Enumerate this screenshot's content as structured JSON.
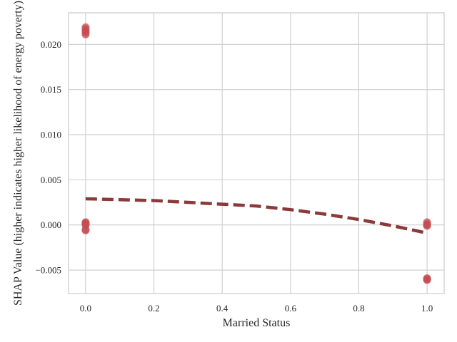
{
  "chart_data": {
    "type": "scatter",
    "title": "",
    "xlabel": "Married Status",
    "ylabel": "SHAP Value (higher indicates higher likelihood of energy poverty)",
    "xlim": [
      -0.05,
      1.05
    ],
    "ylim": [
      -0.0076,
      0.0235
    ],
    "x_ticks": [
      0.0,
      0.2,
      0.4,
      0.6,
      0.8,
      1.0
    ],
    "x_tick_labels": [
      "0.0",
      "0.2",
      "0.4",
      "0.6",
      "0.8",
      "1.0"
    ],
    "y_ticks": [
      -0.005,
      0.0,
      0.005,
      0.01,
      0.015,
      0.02
    ],
    "y_tick_labels": [
      "−0.005",
      "0.000",
      "0.005",
      "0.010",
      "0.015",
      "0.020"
    ],
    "grid": true,
    "point_color": "#c44e52",
    "trend_color": "#8b3a3a",
    "points": [
      {
        "x": 0.0,
        "y": 0.0219
      },
      {
        "x": 0.0,
        "y": 0.0217
      },
      {
        "x": 0.0,
        "y": 0.0215
      },
      {
        "x": 0.0,
        "y": 0.0213
      },
      {
        "x": 0.0,
        "y": 0.0211
      },
      {
        "x": 0.0,
        "y": 0.0003
      },
      {
        "x": 0.0,
        "y": 0.0002
      },
      {
        "x": 0.0,
        "y": 0.0001
      },
      {
        "x": 0.0,
        "y": 0.0
      },
      {
        "x": 0.0,
        "y": -0.0005
      },
      {
        "x": 0.0,
        "y": -0.0006
      },
      {
        "x": 1.0,
        "y": 0.0003
      },
      {
        "x": 1.0,
        "y": 0.0001
      },
      {
        "x": 1.0,
        "y": 0.0
      },
      {
        "x": 1.0,
        "y": -0.0001
      },
      {
        "x": 1.0,
        "y": -0.0059
      },
      {
        "x": 1.0,
        "y": -0.006
      },
      {
        "x": 1.0,
        "y": -0.0061
      }
    ],
    "trend_line": {
      "style": "dashed",
      "x": [
        0.0,
        0.1,
        0.2,
        0.3,
        0.4,
        0.5,
        0.6,
        0.7,
        0.8,
        0.9,
        1.0
      ],
      "y": [
        0.0029,
        0.0028,
        0.0027,
        0.0025,
        0.0023,
        0.0021,
        0.0017,
        0.0012,
        0.0006,
        -0.0001,
        -0.0009
      ]
    }
  }
}
